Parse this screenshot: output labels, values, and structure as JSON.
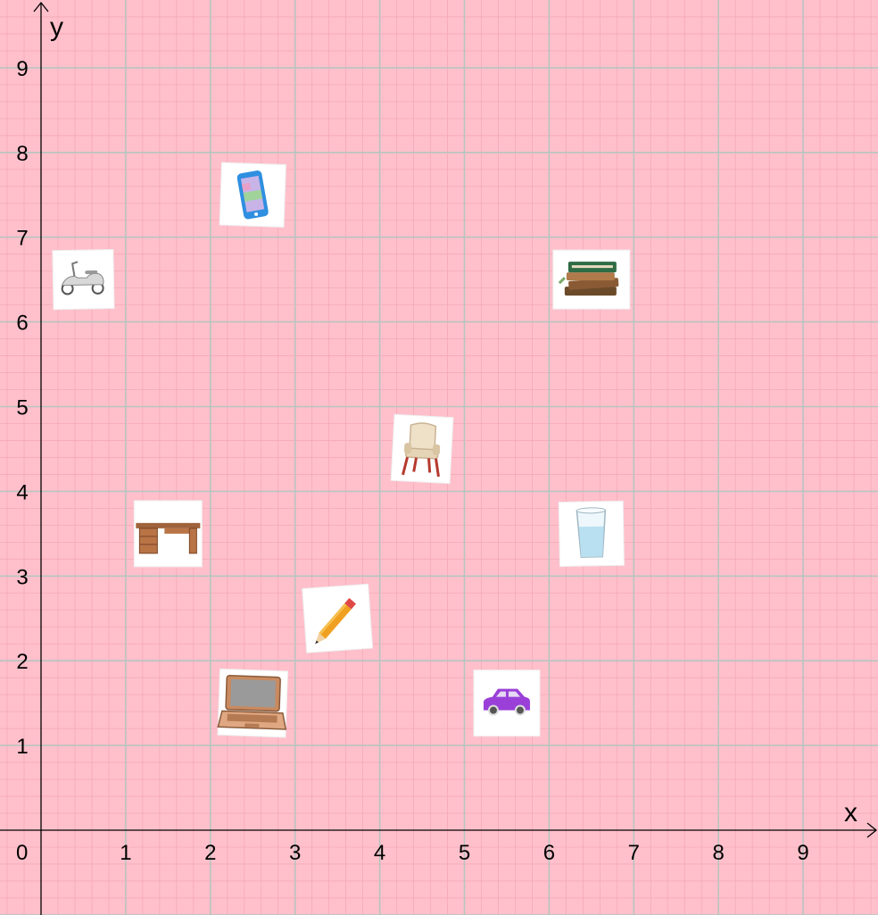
{
  "background_color": "#ffc0cb",
  "grid": {
    "major_color": "#b8c4c0",
    "minor_color": "#f4a9b8",
    "axis_color": "#000000"
  },
  "axes": {
    "x_label": "x",
    "y_label": "y",
    "origin_label": "0",
    "x_range": [
      -0.5,
      9.75
    ],
    "y_range": [
      -1.0,
      9.8
    ],
    "x_ticks": [
      1,
      2,
      3,
      4,
      5,
      6,
      7,
      8,
      9
    ],
    "y_ticks": [
      1,
      2,
      3,
      4,
      5,
      6,
      7,
      8,
      9
    ]
  },
  "objects": [
    {
      "icon": "scooter-icon",
      "x": 0.5,
      "y": 6.5
    },
    {
      "icon": "phone-icon",
      "x": 2.5,
      "y": 7.5
    },
    {
      "icon": "books-icon",
      "x": 6.5,
      "y": 6.5
    },
    {
      "icon": "armchair-icon",
      "x": 4.5,
      "y": 4.5
    },
    {
      "icon": "desk-icon",
      "x": 1.5,
      "y": 3.5
    },
    {
      "icon": "water-glass-icon",
      "x": 6.5,
      "y": 3.5
    },
    {
      "icon": "pencil-icon",
      "x": 3.5,
      "y": 2.5
    },
    {
      "icon": "laptop-icon",
      "x": 2.5,
      "y": 1.5
    },
    {
      "icon": "car-icon",
      "x": 5.5,
      "y": 1.5
    }
  ]
}
